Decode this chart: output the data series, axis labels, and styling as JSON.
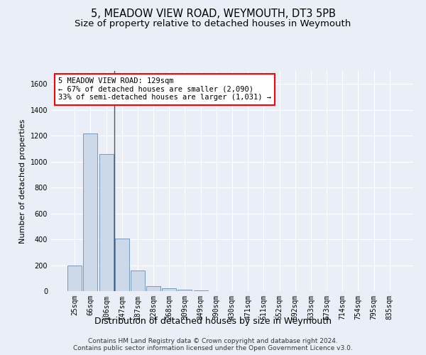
{
  "title": "5, MEADOW VIEW ROAD, WEYMOUTH, DT3 5PB",
  "subtitle": "Size of property relative to detached houses in Weymouth",
  "xlabel": "Distribution of detached houses by size in Weymouth",
  "ylabel": "Number of detached properties",
  "categories": [
    "25sqm",
    "66sqm",
    "106sqm",
    "147sqm",
    "187sqm",
    "228sqm",
    "268sqm",
    "309sqm",
    "349sqm",
    "390sqm",
    "430sqm",
    "471sqm",
    "511sqm",
    "552sqm",
    "592sqm",
    "633sqm",
    "673sqm",
    "714sqm",
    "754sqm",
    "795sqm",
    "835sqm"
  ],
  "values": [
    200,
    1220,
    1060,
    405,
    160,
    40,
    20,
    10,
    5,
    0,
    0,
    0,
    0,
    0,
    0,
    0,
    0,
    0,
    0,
    0,
    0
  ],
  "bar_color": "#ccd9e8",
  "bar_edge_color": "#7799bb",
  "annotation_line_bar_index": 2,
  "annotation_box_text": "5 MEADOW VIEW ROAD: 129sqm\n← 67% of detached houses are smaller (2,090)\n33% of semi-detached houses are larger (1,031) →",
  "ylim": [
    0,
    1700
  ],
  "yticks": [
    0,
    200,
    400,
    600,
    800,
    1000,
    1200,
    1400,
    1600
  ],
  "background_color": "#eaeff7",
  "plot_bg_color": "#eaeff7",
  "grid_color": "#ffffff",
  "footer_line1": "Contains HM Land Registry data © Crown copyright and database right 2024.",
  "footer_line2": "Contains public sector information licensed under the Open Government Licence v3.0.",
  "title_fontsize": 10.5,
  "subtitle_fontsize": 9.5,
  "xlabel_fontsize": 9,
  "ylabel_fontsize": 8,
  "tick_fontsize": 7,
  "annotation_fontsize": 7.5,
  "footer_fontsize": 6.5
}
